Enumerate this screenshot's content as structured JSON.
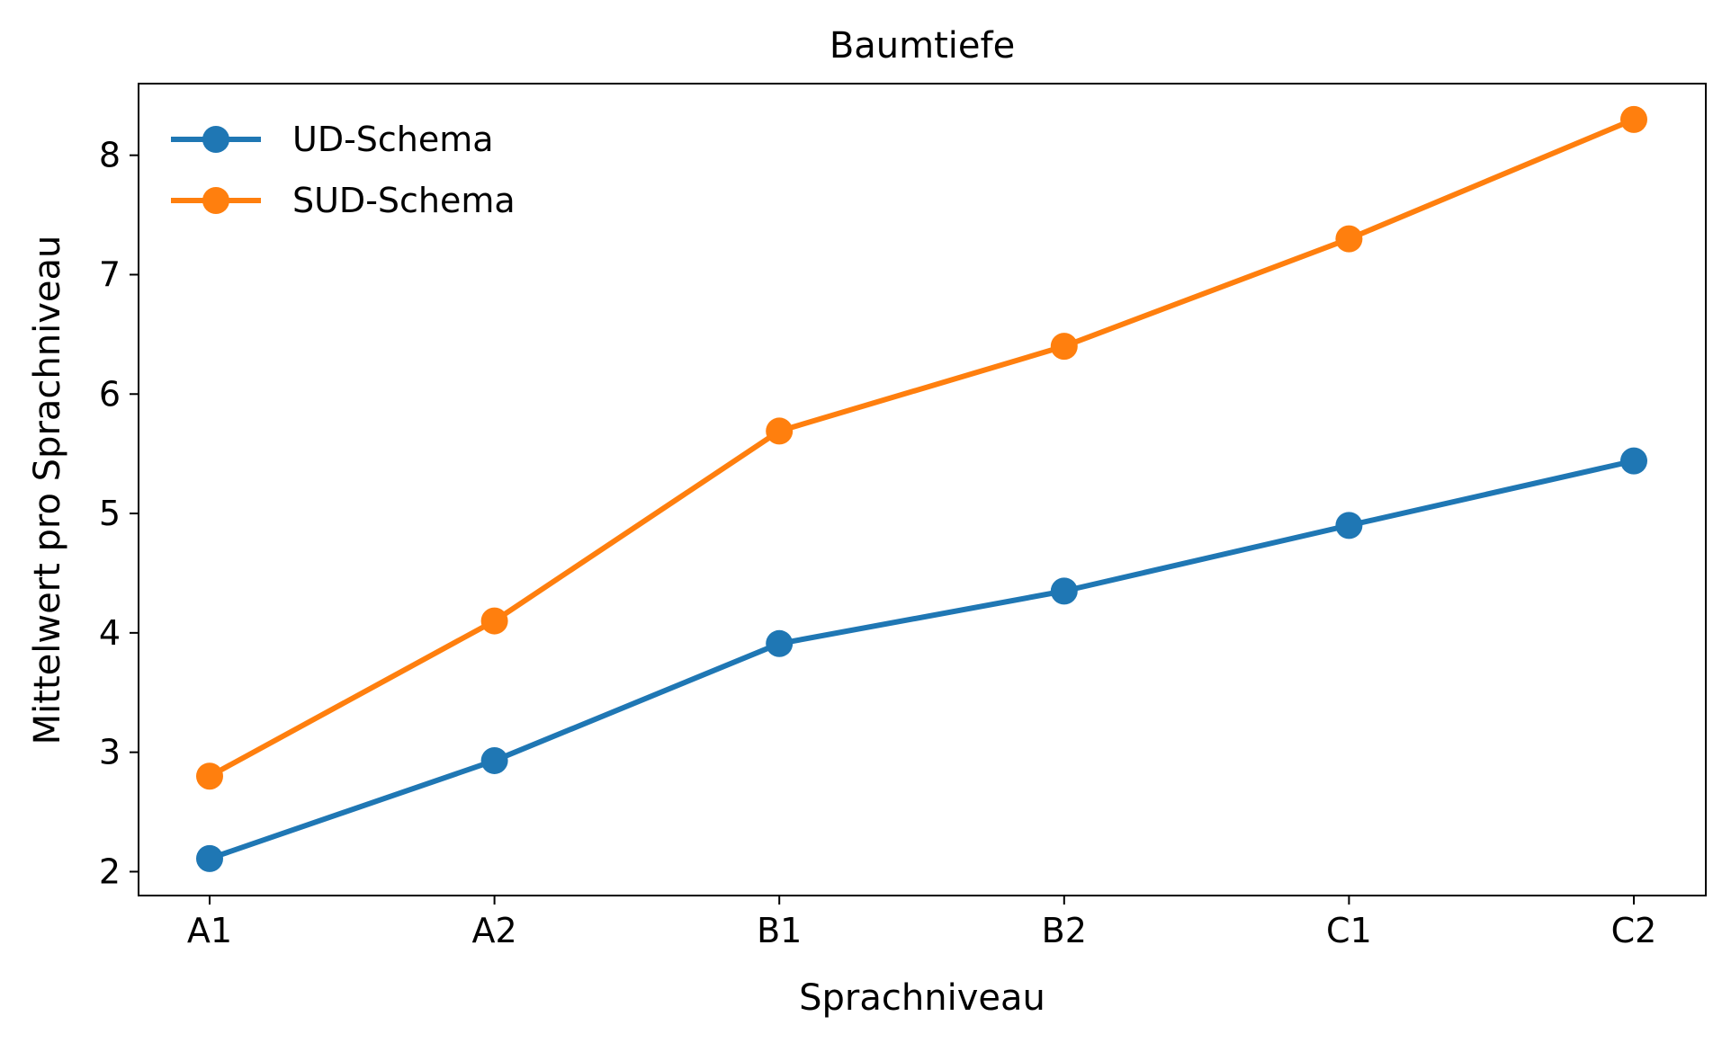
{
  "chart_data": {
    "type": "line",
    "title": "Baumtiefe",
    "xlabel": "Sprachniveau",
    "ylabel": "Mittelwert pro Sprachniveau",
    "categories": [
      "A1",
      "A2",
      "B1",
      "B2",
      "C1",
      "C2"
    ],
    "ylim": [
      1.8,
      8.6
    ],
    "yticks": [
      2,
      3,
      4,
      5,
      6,
      7,
      8
    ],
    "grid": false,
    "legend_position": "top-left",
    "series": [
      {
        "name": "UD-Schema",
        "color": "#1f77b4",
        "values": [
          2.11,
          2.93,
          3.91,
          4.35,
          4.9,
          5.44
        ]
      },
      {
        "name": "SUD-Schema",
        "color": "#ff7f0e",
        "values": [
          2.8,
          4.1,
          5.69,
          6.4,
          7.3,
          8.3
        ]
      }
    ]
  }
}
